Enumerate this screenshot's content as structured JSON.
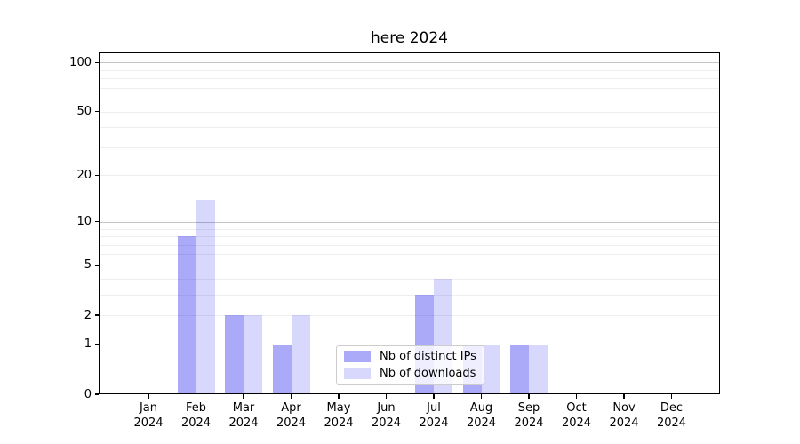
{
  "chart_data": {
    "type": "bar",
    "title": "here 2024",
    "xlabel": "",
    "ylabel": "",
    "year": "2024",
    "categories": [
      "Jan",
      "Feb",
      "Mar",
      "Apr",
      "May",
      "Jun",
      "Jul",
      "Aug",
      "Sep",
      "Oct",
      "Nov",
      "Dec"
    ],
    "series": [
      {
        "name": "Nb of distinct IPs",
        "values": [
          0,
          8,
          2,
          1,
          0,
          0,
          3,
          1,
          1,
          0,
          0,
          0
        ],
        "color": "rgba(12,12,238,0.35)",
        "color_hex_on_white": "#aaaaf9"
      },
      {
        "name": "Nb of downloads",
        "values": [
          0,
          14,
          2,
          2,
          0,
          0,
          4,
          1,
          1,
          0,
          0,
          0
        ],
        "color": "rgba(12,12,238,0.16)",
        "color_hex_on_white": "#d9d9fc"
      }
    ],
    "yscale": "log1p",
    "ylim": [
      0,
      115
    ],
    "yticks": [
      0,
      1,
      2,
      5,
      10,
      20,
      50,
      100
    ],
    "grid": {
      "major_values": [
        1,
        10,
        100
      ],
      "minor_values": [
        2,
        3,
        4,
        5,
        6,
        7,
        8,
        9,
        20,
        30,
        40,
        50,
        60,
        70,
        80,
        90
      ],
      "major_color": "#c4c4c4",
      "minor_color": "#eeeeee"
    },
    "legend_position": "lower center"
  }
}
